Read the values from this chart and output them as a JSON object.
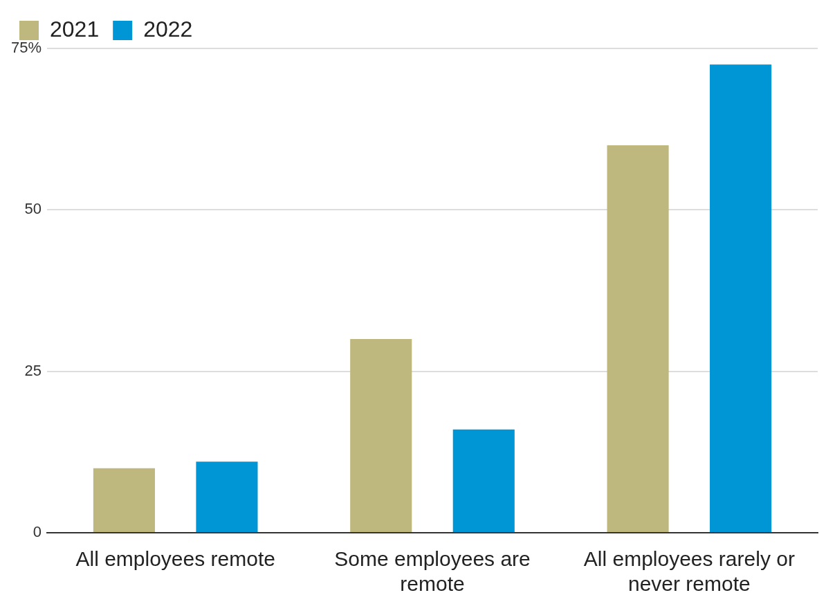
{
  "chart_data": {
    "type": "bar",
    "categories": [
      "All employees remote",
      "Some employees are remote",
      "All employees rarely or never remote"
    ],
    "series": [
      {
        "name": "2021",
        "color": "#bfb87e",
        "values": [
          10,
          30,
          60
        ]
      },
      {
        "name": "2022",
        "color": "#0096d6",
        "values": [
          11,
          16,
          72.5
        ]
      }
    ],
    "ylim": [
      0,
      75
    ],
    "yticks": [
      0,
      25,
      50,
      {
        "value": 75,
        "label": "75%"
      }
    ],
    "grid": "y",
    "legend": "top left"
  }
}
